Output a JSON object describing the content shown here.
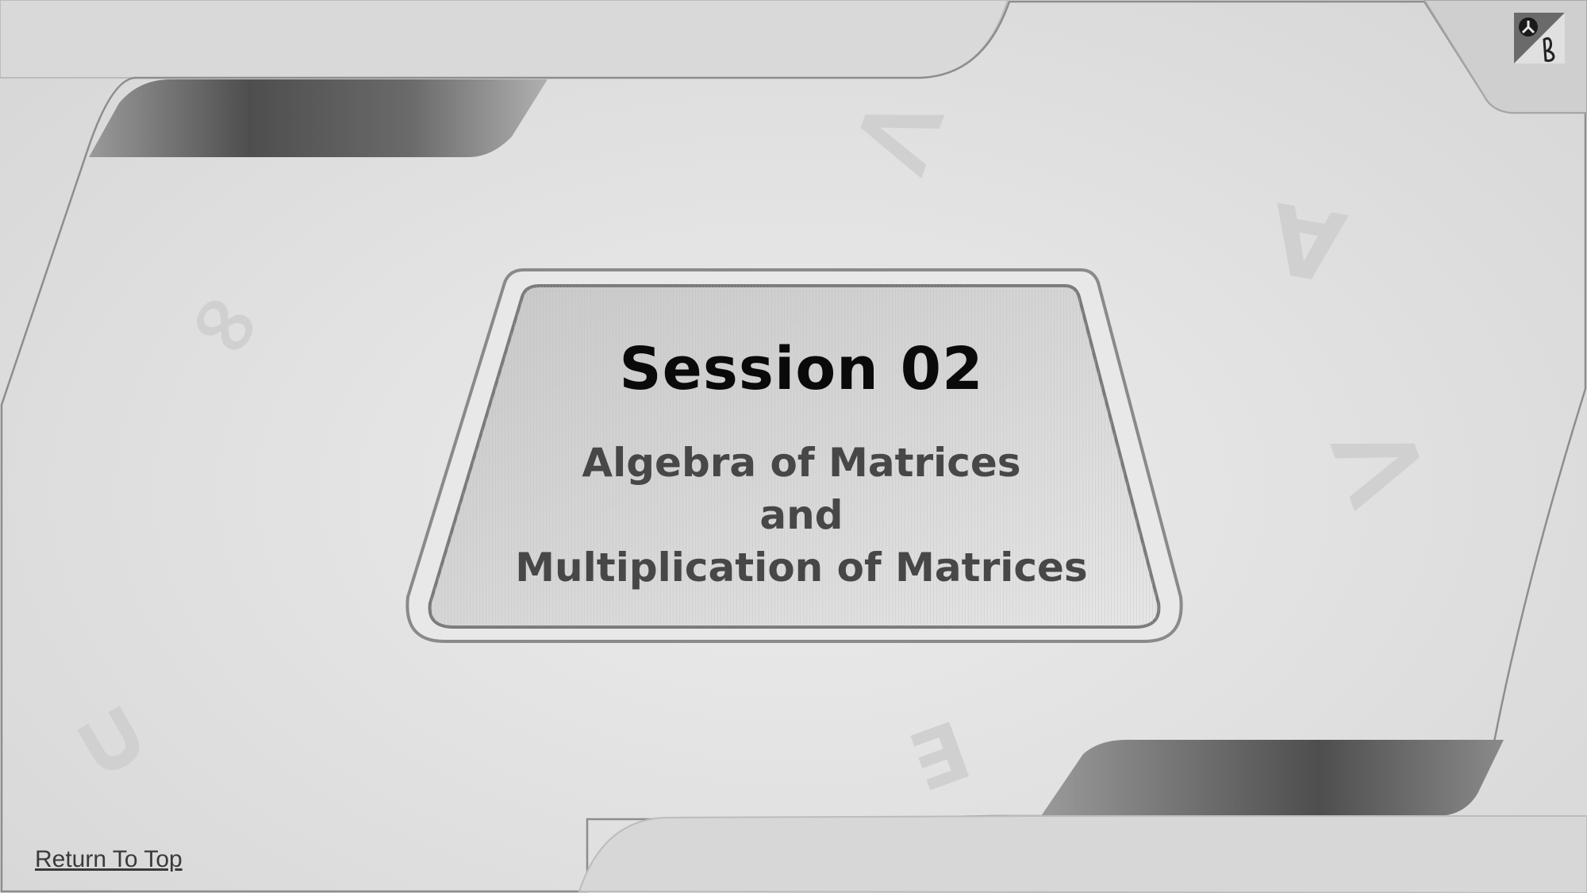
{
  "slide": {
    "session_title": "Session 02",
    "subtitle_lines": [
      "Algebra of Matrices",
      "and",
      "Multiplication of Matrices"
    ]
  },
  "footer": {
    "return_link_label": "Return To Top"
  },
  "background_glyphs": {
    "infinity": "∞",
    "less_than": "<",
    "for_all": "∀",
    "greater_than": ">",
    "union": "∪",
    "exists": "∃"
  },
  "colors": {
    "background": "#e2e2e2",
    "title": "#0a0a0a",
    "subtitle": "#474747",
    "dark_band": "#5a5a5a"
  }
}
